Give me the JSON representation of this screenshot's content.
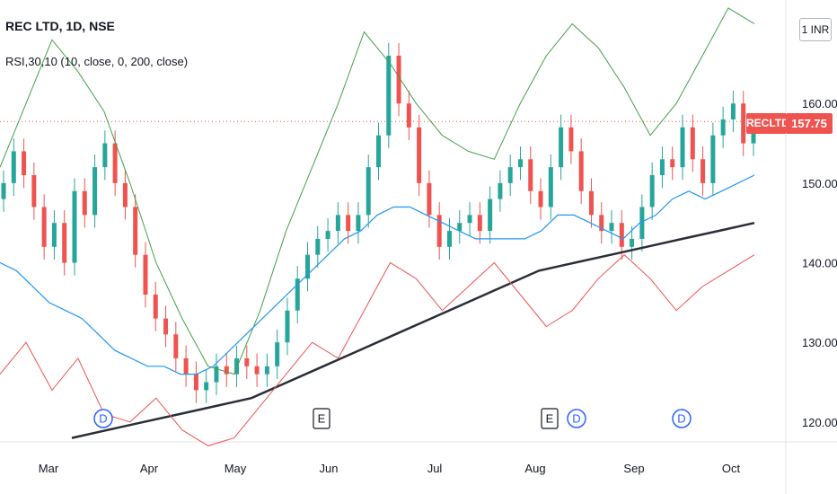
{
  "header": {
    "title": "REC LTD, 1D, NSE",
    "indicator": "RSI,30,10 (10, close, 0, 200, close)"
  },
  "axis": {
    "currency_label": "INR",
    "currency_icon": "1"
  },
  "price_tag": {
    "symbol": "RECLTD",
    "value": "157.75",
    "color": "#ef5350"
  },
  "colors": {
    "up": "#26a69a",
    "down": "#ef5350",
    "blue_line": "#2196f3",
    "green_line": "#43a047",
    "red_line": "#ef5350",
    "ma200": "#2a2e39"
  },
  "events": [
    {
      "label": "D",
      "kind": "dividend",
      "month_pos": "Mar-end"
    },
    {
      "label": "E",
      "kind": "earnings",
      "month_pos": "Jun-start"
    },
    {
      "label": "E",
      "kind": "earnings",
      "month_pos": "Aug-mid"
    },
    {
      "label": "D",
      "kind": "dividend",
      "month_pos": "Aug-mid"
    },
    {
      "label": "D",
      "kind": "dividend",
      "month_pos": "Sep-mid"
    }
  ],
  "chart_data": {
    "type": "line",
    "title": "REC LTD, 1D, NSE",
    "x_ticks": [
      "Mar",
      "Apr",
      "May",
      "Jun",
      "Jul",
      "Aug",
      "Sep",
      "Oct"
    ],
    "y_ticks": [
      "120.00",
      "130.00",
      "140.00",
      "150.00",
      "160.00"
    ],
    "ylim": [
      117.5,
      173
    ],
    "last_price": 157.75,
    "ohlc_close_approx": [
      150,
      154,
      151,
      147,
      142,
      145,
      140,
      149,
      146,
      152,
      155,
      150,
      147,
      141,
      136,
      133,
      131,
      128,
      126,
      124,
      125,
      127,
      126,
      128,
      127,
      126,
      127,
      130,
      134,
      138,
      141,
      143,
      144,
      146,
      144,
      146,
      152,
      156,
      166,
      160,
      157,
      150,
      146,
      142,
      144,
      145,
      146,
      144,
      148,
      150,
      152,
      153,
      149,
      147,
      152,
      157,
      154,
      149,
      146,
      144,
      145,
      142,
      143,
      147,
      151,
      153,
      152,
      157,
      153,
      150,
      156,
      158,
      160,
      155,
      157
    ],
    "series": [
      {
        "values": [
          140,
          139,
          137,
          135,
          134,
          133,
          131,
          129,
          128,
          127,
          127,
          126,
          126,
          127,
          129,
          131,
          133,
          135,
          137,
          139,
          141,
          143,
          144,
          146,
          147,
          147,
          146,
          145,
          144,
          143,
          143,
          143,
          143,
          144,
          146,
          146,
          145,
          144,
          143,
          145,
          146,
          148,
          149,
          148,
          149,
          150,
          151
        ]
      },
      {
        "values": [
          152,
          160,
          168,
          164,
          159,
          150,
          140,
          133,
          127,
          126,
          134,
          144,
          152,
          160,
          169,
          165,
          160,
          156,
          154,
          153,
          160,
          166,
          170,
          167,
          162,
          156,
          160,
          166,
          172,
          170
        ]
      },
      {
        "values": [
          126,
          130,
          124,
          128,
          121,
          120,
          123,
          119,
          117,
          118,
          122,
          126,
          130,
          128,
          134,
          140,
          138,
          134,
          137,
          140,
          136,
          132,
          134,
          138,
          141,
          138,
          134,
          137,
          139,
          141
        ]
      },
      {
        "values": [
          118,
          119,
          120,
          121,
          122,
          123,
          125,
          127,
          129,
          131,
          133,
          135,
          137,
          139,
          140,
          141,
          142,
          143,
          144,
          145
        ]
      }
    ]
  }
}
